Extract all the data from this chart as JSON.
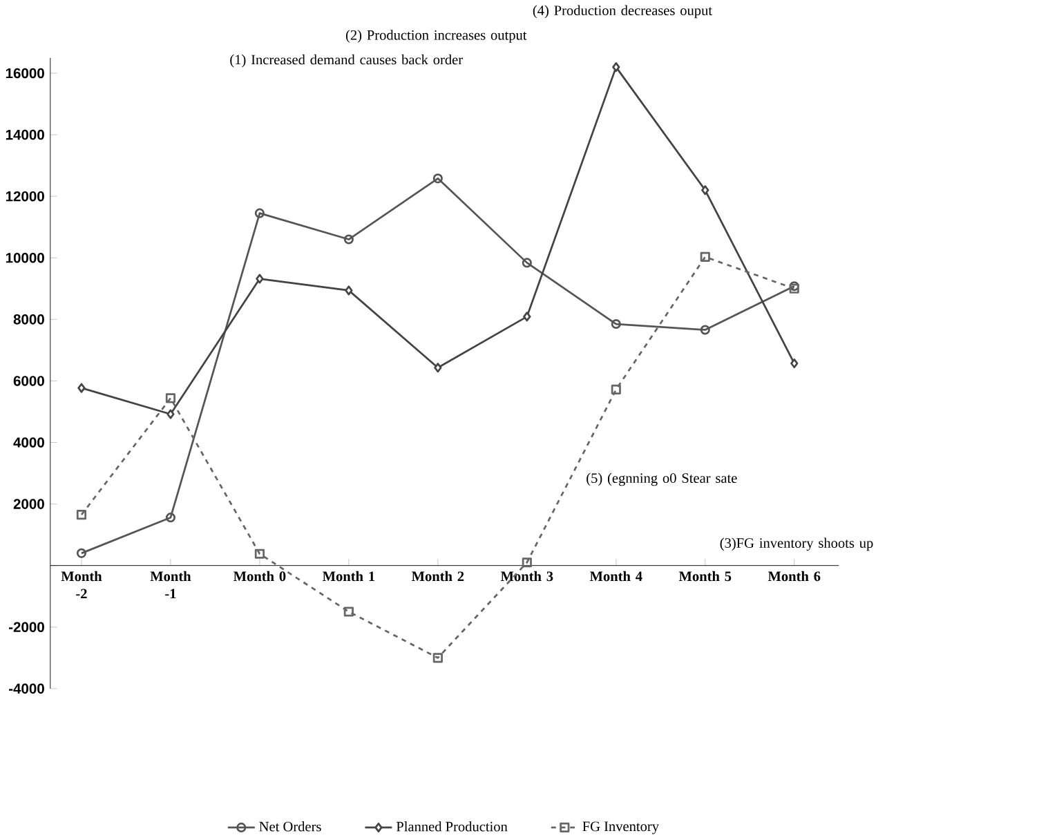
{
  "chart_data": {
    "type": "line",
    "categories": [
      "Month -2",
      "Month -1",
      "Month 0",
      "Month 1",
      "Month 2",
      "Month 3",
      "Month 4",
      "Month 5",
      "Month 6"
    ],
    "series": [
      {
        "name": "Net Orders",
        "color": "#555555",
        "marker": "circle",
        "line_style": "solid",
        "values": [
          400,
          1560,
          11450,
          10600,
          12580,
          9840,
          7850,
          7660,
          9080
        ]
      },
      {
        "name": "Planned Production",
        "color": "#444444",
        "marker": "diamond",
        "line_style": "solid",
        "values": [
          5770,
          4920,
          9320,
          8940,
          6430,
          8090,
          16200,
          12200,
          6570
        ]
      },
      {
        "name": "FG Inventory",
        "color": "#666666",
        "marker": "square",
        "line_style": "dashed",
        "values": [
          1650,
          5440,
          380,
          -1500,
          -3000,
          100,
          5720,
          10030,
          9000
        ]
      }
    ],
    "ylim": [
      -4000,
      16500
    ],
    "yticks": [
      -4000,
      -2000,
      {
        "value": 0,
        "label": null
      },
      2000,
      4000,
      6000,
      8000,
      10000,
      12000,
      14000,
      16000
    ],
    "legend": "bottom",
    "grid": false,
    "annotations": [
      "(1) Increased demand causes back order",
      "(2) Production increases output",
      "(3)FG inventory shoots up",
      "(4) Production decreases ouput",
      "(5) (egnning o0 Stear sate"
    ]
  }
}
